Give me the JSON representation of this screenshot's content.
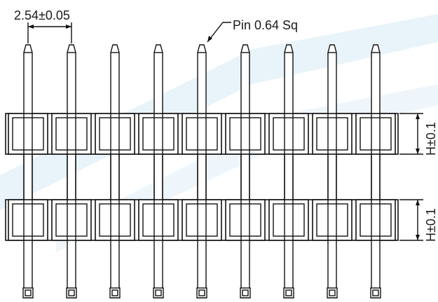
{
  "labels": {
    "pitch": "2.54±0.05",
    "pin": "Pin 0.64 Sq",
    "height_top": "H±0.1",
    "height_bottom": "H±0.1"
  },
  "pin_count": 9,
  "colors": {
    "stroke": "#111111",
    "watermark": "#cfe6f5"
  }
}
